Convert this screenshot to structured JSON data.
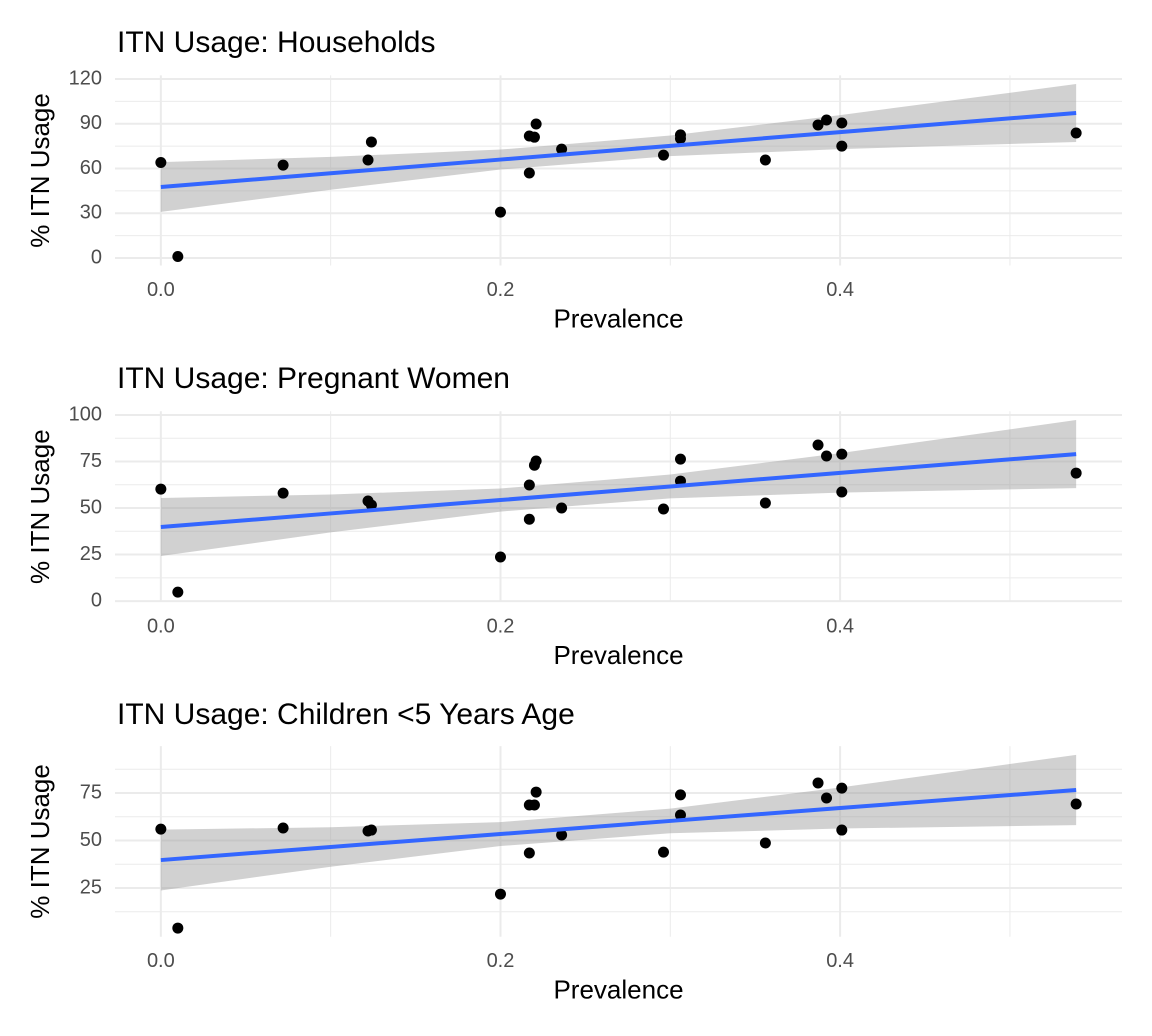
{
  "chart_data": [
    {
      "type": "scatter",
      "title": "ITN Usage: Households",
      "x_label": "Prevalence",
      "y_label": "% ITN Usage",
      "x": [
        0.0,
        0.01,
        0.072,
        0.122,
        0.124,
        0.2,
        0.217,
        0.217,
        0.22,
        0.221,
        0.236,
        0.296,
        0.306,
        0.306,
        0.356,
        0.387,
        0.392,
        0.401,
        0.401,
        0.539
      ],
      "y": [
        64,
        1,
        62.3,
        65.7,
        77.8,
        30.8,
        81.8,
        57,
        81,
        89.8,
        73,
        69,
        82.5,
        80,
        65.7,
        89.2,
        92.5,
        90.5,
        75,
        83.8
      ],
      "fit": {
        "x": [
          0,
          0.1,
          0.2,
          0.3,
          0.4,
          0.539
        ],
        "values": [
          47.6,
          56.8,
          66.0,
          75.2,
          84.4,
          97.2
        ],
        "lower": [
          30.9,
          45.8,
          59.3,
          68.3,
          73.0,
          77.8
        ],
        "upper": [
          64.3,
          67.8,
          72.7,
          82.1,
          95.8,
          116.6
        ]
      },
      "xlim": [
        -0.027,
        0.566
      ],
      "xticks": [
        {
          "value": 0,
          "label": "0.0"
        },
        0.2,
        0.4
      ],
      "ylim": [
        -5,
        122.4
      ],
      "yticks": [
        0,
        30,
        60,
        90,
        120
      ],
      "point_color": "#000000",
      "line_color": "#3366ff",
      "band_color": "#999999",
      "grid": true
    },
    {
      "type": "scatter",
      "title": "ITN Usage: Pregnant Women",
      "x_label": "Prevalence",
      "y_label": "% ITN Usage",
      "x": [
        0.0,
        0.01,
        0.072,
        0.122,
        0.124,
        0.2,
        0.217,
        0.217,
        0.22,
        0.221,
        0.236,
        0.296,
        0.306,
        0.306,
        0.356,
        0.387,
        0.392,
        0.401,
        0.401,
        0.539
      ],
      "y": [
        60.2,
        4.8,
        58,
        53.8,
        51.6,
        23.7,
        62.4,
        44,
        73,
        75.3,
        50,
        49.5,
        64.5,
        76.3,
        52.7,
        83.9,
        78,
        79,
        58.6,
        68.8
      ],
      "fit": {
        "x": [
          0,
          0.1,
          0.2,
          0.3,
          0.4,
          0.539
        ],
        "values": [
          39.8,
          47.1,
          54.3,
          61.6,
          68.9,
          79.0
        ],
        "lower": [
          24.2,
          36.9,
          48.1,
          55.2,
          58.3,
          60.7
        ],
        "upper": [
          55.4,
          57.3,
          60.5,
          68.0,
          79.5,
          97.3
        ]
      },
      "xlim": [
        -0.027,
        0.566
      ],
      "xticks": [
        {
          "value": 0,
          "label": "0.0"
        },
        0.2,
        0.4
      ],
      "ylim": [
        -0.5,
        102
      ],
      "yticks": [
        0,
        25,
        50,
        75,
        100
      ],
      "point_color": "#000000",
      "line_color": "#3366ff",
      "band_color": "#999999",
      "grid": true
    },
    {
      "type": "scatter",
      "title": "ITN Usage: Children <5 Years Age",
      "x_label": "Prevalence",
      "y_label": "% ITN Usage",
      "x": [
        0.0,
        0.01,
        0.072,
        0.122,
        0.124,
        0.2,
        0.217,
        0.217,
        0.22,
        0.221,
        0.236,
        0.296,
        0.306,
        0.306,
        0.356,
        0.387,
        0.392,
        0.401,
        0.401,
        0.539
      ],
      "y": [
        56,
        3.9,
        56.6,
        55,
        55.5,
        21.8,
        68.7,
        43.4,
        68.7,
        75.5,
        52.9,
        43.9,
        63.4,
        74,
        48.7,
        80.3,
        72.4,
        77.6,
        55.5,
        69.2
      ],
      "fit": {
        "x": [
          0,
          0.1,
          0.2,
          0.3,
          0.4,
          0.539
        ],
        "values": [
          39.7,
          46.6,
          53.4,
          60.3,
          67.1,
          76.6
        ],
        "lower": [
          23.7,
          36.2,
          47.1,
          53.8,
          56.3,
          58.1
        ],
        "upper": [
          55.7,
          57.0,
          59.7,
          66.8,
          77.9,
          95.1
        ]
      },
      "xlim": [
        -0.027,
        0.566
      ],
      "xticks": [
        {
          "value": 0,
          "label": "0.0"
        },
        0.2,
        0.4
      ],
      "ylim": [
        -0.7,
        99.7
      ],
      "yticks": [
        25,
        50,
        75
      ],
      "point_color": "#000000",
      "line_color": "#3366ff",
      "band_color": "#999999",
      "grid": true
    }
  ]
}
